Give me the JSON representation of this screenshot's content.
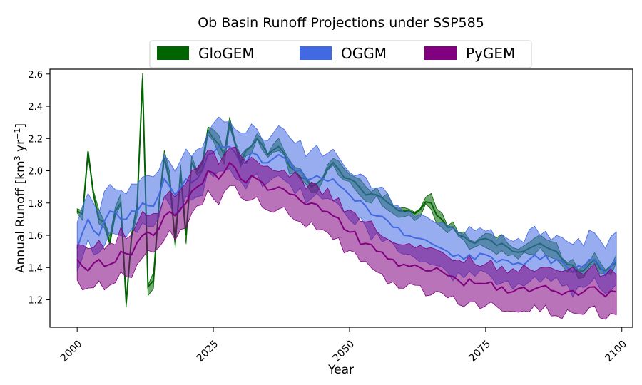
{
  "chart_data": {
    "type": "line",
    "title": "Ob Basin Runoff Projections under SSP585",
    "xlabel": "Year",
    "ylabel_main": "Annual Runoff [km",
    "ylabel_sup1": "3",
    "ylabel_mid": " yr",
    "ylabel_sup2": "−1",
    "ylabel_end": "]",
    "xlim": [
      1995,
      2102
    ],
    "ylim": [
      1.03,
      2.63
    ],
    "x_ticks": [
      2000,
      2025,
      2050,
      2075,
      2100
    ],
    "y_ticks": [
      1.2,
      1.4,
      1.6,
      1.8,
      2.0,
      2.2,
      2.4,
      2.6
    ],
    "y_tick_labels": [
      "1.2",
      "1.4",
      "1.6",
      "1.8",
      "2.0",
      "2.2",
      "2.4",
      "2.6"
    ],
    "legend_position": "top-center",
    "grid": false,
    "series": [
      {
        "name": "GloGEM",
        "color": "#006400",
        "knots": [
          [
            2000,
            1.75
          ],
          [
            2001,
            1.73
          ],
          [
            2002,
            2.12
          ],
          [
            2003,
            1.85
          ],
          [
            2004,
            1.7
          ],
          [
            2005,
            1.68
          ],
          [
            2006,
            1.55
          ],
          [
            2007,
            1.75
          ],
          [
            2008,
            1.8
          ],
          [
            2009,
            1.18
          ],
          [
            2010,
            1.6
          ],
          [
            2011,
            1.78
          ],
          [
            2012,
            2.57
          ],
          [
            2013,
            1.28
          ],
          [
            2014,
            1.32
          ],
          [
            2015,
            1.78
          ],
          [
            2016,
            2.08
          ],
          [
            2017,
            1.95
          ],
          [
            2018,
            1.55
          ],
          [
            2019,
            2.0
          ],
          [
            2020,
            1.6
          ],
          [
            2021,
            2.05
          ],
          [
            2022,
            2.0
          ],
          [
            2023,
            2.05
          ],
          [
            2024,
            2.25
          ],
          [
            2025,
            2.2
          ],
          [
            2027,
            2.1
          ],
          [
            2028,
            2.3
          ],
          [
            2030,
            2.05
          ],
          [
            2033,
            2.2
          ],
          [
            2035,
            2.1
          ],
          [
            2037,
            2.15
          ],
          [
            2040,
            2.0
          ],
          [
            2043,
            1.9
          ],
          [
            2045,
            1.95
          ],
          [
            2047,
            2.05
          ],
          [
            2050,
            1.95
          ],
          [
            2053,
            1.85
          ],
          [
            2055,
            1.85
          ],
          [
            2058,
            1.78
          ],
          [
            2060,
            1.75
          ],
          [
            2063,
            1.76
          ],
          [
            2065,
            1.8
          ],
          [
            2068,
            1.65
          ],
          [
            2070,
            1.6
          ],
          [
            2073,
            1.55
          ],
          [
            2075,
            1.58
          ],
          [
            2078,
            1.55
          ],
          [
            2080,
            1.5
          ],
          [
            2083,
            1.52
          ],
          [
            2085,
            1.55
          ],
          [
            2088,
            1.5
          ],
          [
            2090,
            1.42
          ],
          [
            2093,
            1.38
          ],
          [
            2095,
            1.45
          ],
          [
            2097,
            1.38
          ],
          [
            2099,
            1.43
          ]
        ],
        "spread_lo": 0.03,
        "spread_hi": 0.03
      },
      {
        "name": "OGGM",
        "color": "#4169E1",
        "knots": [
          [
            2000,
            1.52
          ],
          [
            2002,
            1.7
          ],
          [
            2004,
            1.6
          ],
          [
            2006,
            1.75
          ],
          [
            2008,
            1.7
          ],
          [
            2010,
            1.75
          ],
          [
            2012,
            1.8
          ],
          [
            2014,
            1.78
          ],
          [
            2016,
            1.95
          ],
          [
            2018,
            1.85
          ],
          [
            2020,
            1.95
          ],
          [
            2022,
            1.95
          ],
          [
            2024,
            2.1
          ],
          [
            2026,
            2.15
          ],
          [
            2028,
            2.15
          ],
          [
            2030,
            2.05
          ],
          [
            2033,
            2.1
          ],
          [
            2035,
            2.05
          ],
          [
            2037,
            2.1
          ],
          [
            2040,
            2.0
          ],
          [
            2043,
            1.95
          ],
          [
            2045,
            1.95
          ],
          [
            2047,
            1.95
          ],
          [
            2050,
            1.85
          ],
          [
            2053,
            1.78
          ],
          [
            2055,
            1.72
          ],
          [
            2058,
            1.65
          ],
          [
            2060,
            1.6
          ],
          [
            2063,
            1.58
          ],
          [
            2065,
            1.55
          ],
          [
            2068,
            1.5
          ],
          [
            2070,
            1.48
          ],
          [
            2073,
            1.45
          ],
          [
            2075,
            1.48
          ],
          [
            2078,
            1.45
          ],
          [
            2080,
            1.42
          ],
          [
            2083,
            1.45
          ],
          [
            2085,
            1.45
          ],
          [
            2088,
            1.45
          ],
          [
            2090,
            1.4
          ],
          [
            2093,
            1.4
          ],
          [
            2095,
            1.45
          ],
          [
            2097,
            1.35
          ],
          [
            2099,
            1.45
          ]
        ],
        "spread_lo": 0.13,
        "spread_hi": 0.16
      },
      {
        "name": "PyGEM",
        "color": "#800080",
        "knots": [
          [
            2000,
            1.45
          ],
          [
            2002,
            1.38
          ],
          [
            2004,
            1.45
          ],
          [
            2006,
            1.42
          ],
          [
            2008,
            1.5
          ],
          [
            2010,
            1.48
          ],
          [
            2012,
            1.6
          ],
          [
            2014,
            1.6
          ],
          [
            2016,
            1.72
          ],
          [
            2018,
            1.72
          ],
          [
            2020,
            1.8
          ],
          [
            2022,
            1.9
          ],
          [
            2024,
            2.0
          ],
          [
            2026,
            1.95
          ],
          [
            2028,
            2.05
          ],
          [
            2030,
            1.95
          ],
          [
            2033,
            1.95
          ],
          [
            2035,
            1.88
          ],
          [
            2037,
            1.9
          ],
          [
            2040,
            1.85
          ],
          [
            2043,
            1.8
          ],
          [
            2045,
            1.75
          ],
          [
            2047,
            1.72
          ],
          [
            2050,
            1.62
          ],
          [
            2053,
            1.55
          ],
          [
            2055,
            1.5
          ],
          [
            2058,
            1.45
          ],
          [
            2060,
            1.42
          ],
          [
            2063,
            1.4
          ],
          [
            2065,
            1.38
          ],
          [
            2068,
            1.35
          ],
          [
            2070,
            1.32
          ],
          [
            2073,
            1.3
          ],
          [
            2075,
            1.3
          ],
          [
            2078,
            1.28
          ],
          [
            2080,
            1.25
          ],
          [
            2083,
            1.25
          ],
          [
            2085,
            1.28
          ],
          [
            2088,
            1.25
          ],
          [
            2090,
            1.25
          ],
          [
            2093,
            1.25
          ],
          [
            2095,
            1.28
          ],
          [
            2097,
            1.22
          ],
          [
            2099,
            1.25
          ]
        ],
        "spread_lo": 0.13,
        "spread_hi": 0.12
      }
    ]
  }
}
